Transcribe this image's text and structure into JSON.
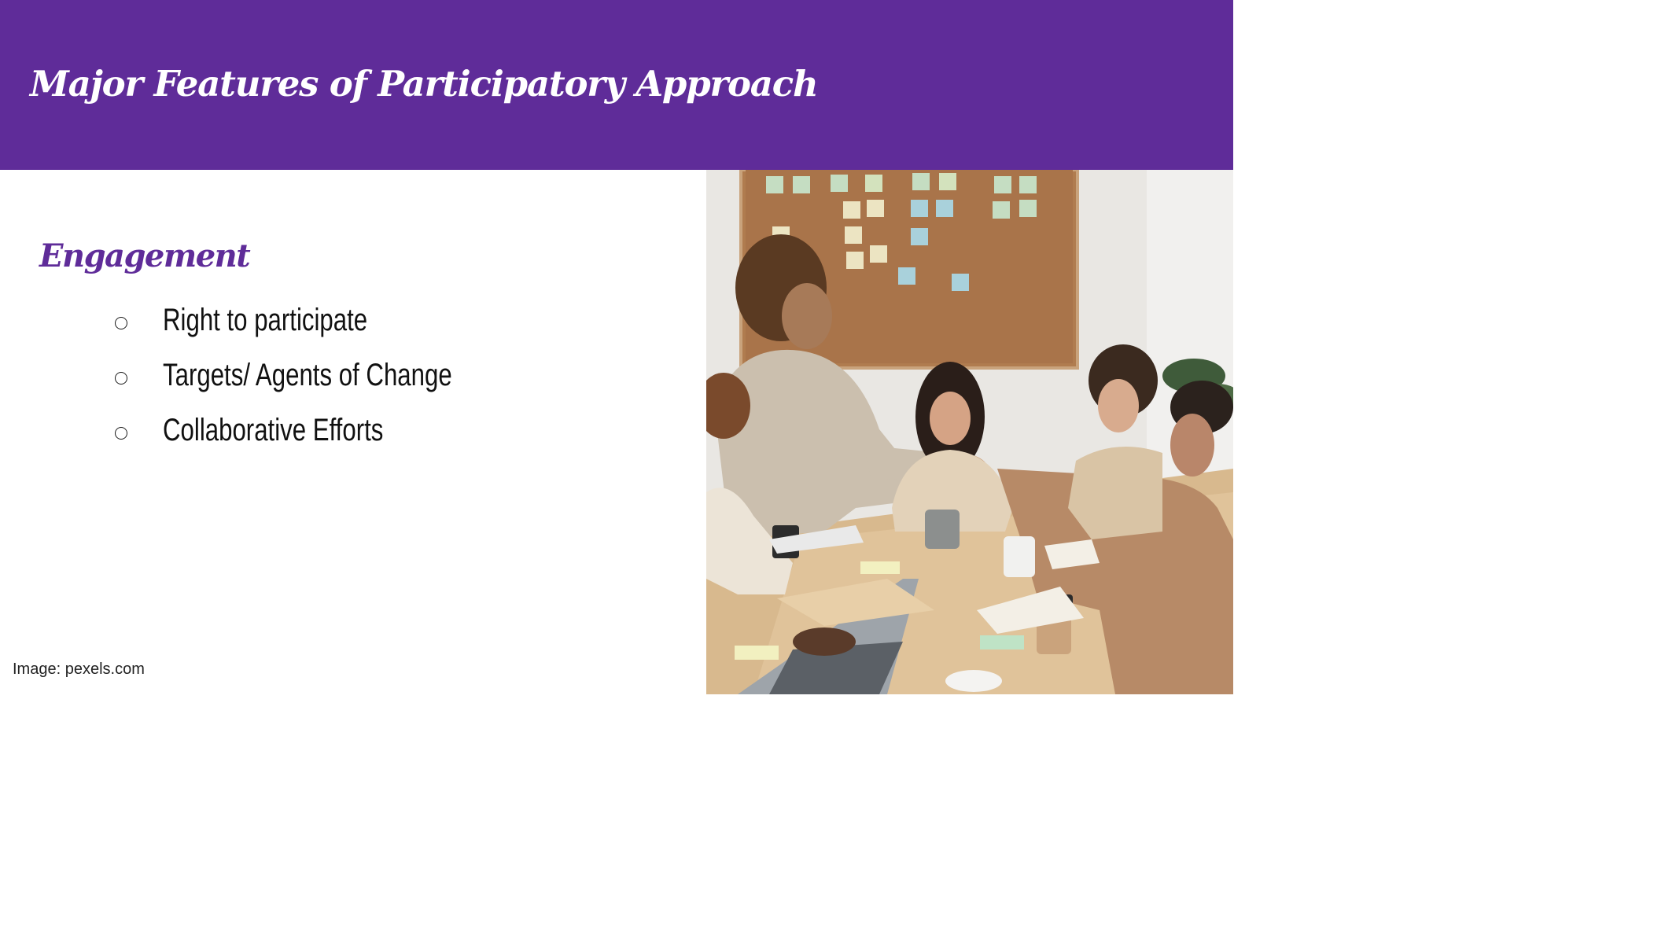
{
  "slide": {
    "title": "Major Features of Participatory Approach",
    "subheading": "Engagement",
    "bullets": [
      "Right to participate",
      "Targets/ Agents of Change",
      "Collaborative Efforts"
    ],
    "image_credit": "Image: pexels.com"
  },
  "colors": {
    "accent": "#5f2c99",
    "title_text": "#ffffff",
    "body_text": "#111111"
  },
  "photo": {
    "icon": "team-meeting-photo"
  }
}
